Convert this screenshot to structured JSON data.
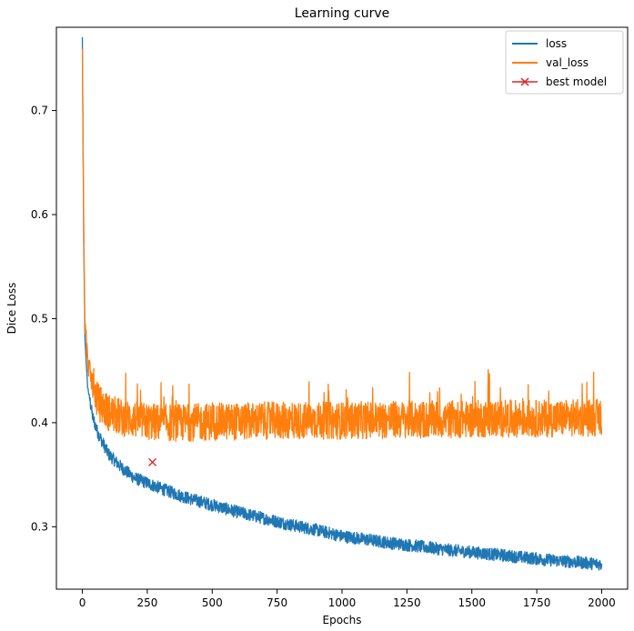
{
  "chart_data": {
    "type": "line",
    "title": "Learning curve",
    "xlabel": "Epochs",
    "ylabel": "Dice Loss",
    "xlim": [
      -100,
      2100
    ],
    "ylim": [
      0.24,
      0.78
    ],
    "xticks": [
      0,
      250,
      500,
      750,
      1000,
      1250,
      1500,
      1750,
      2000
    ],
    "yticks": [
      0.3,
      0.4,
      0.5,
      0.6,
      0.7
    ],
    "ytick_labels": [
      "0.3",
      "0.4",
      "0.5",
      "0.6",
      "0.7"
    ],
    "grid": false,
    "legend_position": "top-right",
    "series": [
      {
        "name": "loss",
        "color": "#1f77b4",
        "x": [
          0,
          5,
          10,
          20,
          40,
          60,
          100,
          150,
          200,
          250,
          300,
          400,
          500,
          600,
          700,
          800,
          900,
          1000,
          1200,
          1400,
          1600,
          1800,
          2000
        ],
        "y": [
          0.77,
          0.58,
          0.48,
          0.435,
          0.405,
          0.39,
          0.37,
          0.357,
          0.347,
          0.342,
          0.337,
          0.328,
          0.321,
          0.314,
          0.308,
          0.302,
          0.297,
          0.291,
          0.284,
          0.278,
          0.273,
          0.268,
          0.264
        ],
        "noise": 0.006
      },
      {
        "name": "val_loss",
        "color": "#ff7f0e",
        "x": [
          0,
          5,
          10,
          20,
          40,
          60,
          100,
          150,
          200,
          250,
          300,
          400,
          500,
          600,
          700,
          800,
          1000,
          1200,
          1400,
          1600,
          1800,
          2000
        ],
        "y": [
          0.765,
          0.6,
          0.5,
          0.46,
          0.435,
          0.42,
          0.41,
          0.405,
          0.403,
          0.401,
          0.4,
          0.4,
          0.401,
          0.401,
          0.402,
          0.402,
          0.402,
          0.403,
          0.403,
          0.404,
          0.404,
          0.405
        ],
        "noise": 0.018
      },
      {
        "name": "best model",
        "color": "#d62728",
        "marker": "x",
        "x": [
          270
        ],
        "y": [
          0.362
        ]
      }
    ]
  }
}
